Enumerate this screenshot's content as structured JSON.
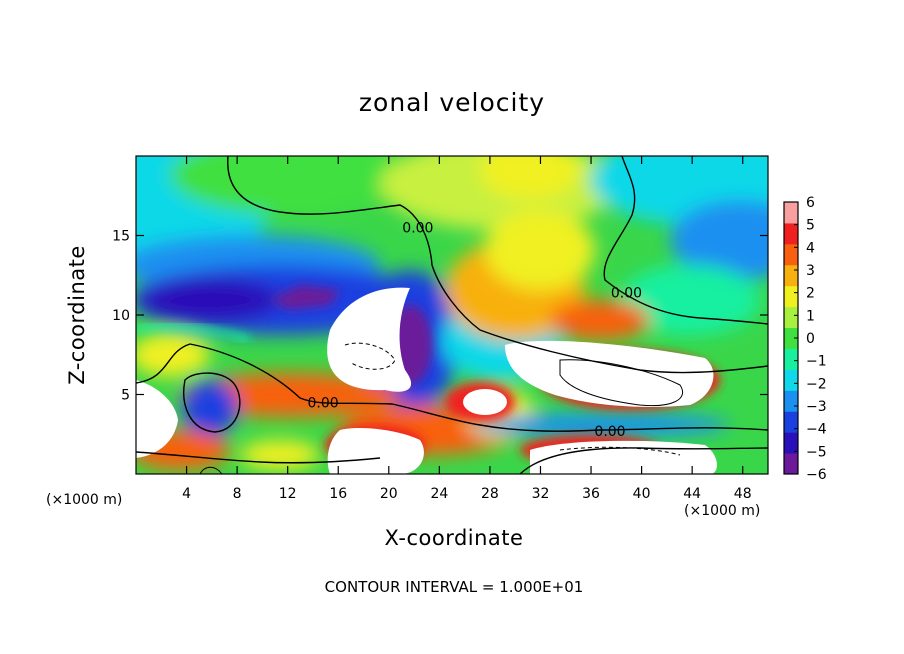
{
  "chart_data": {
    "type": "heatmap",
    "title": "zonal velocity",
    "xlabel": "X-coordinate",
    "ylabel": "Z-coordinate",
    "x_unit_label": "(×1000 m)",
    "x_ticks": [
      4,
      8,
      12,
      16,
      20,
      24,
      28,
      32,
      36,
      40,
      44,
      48
    ],
    "y_ticks": [
      5,
      10,
      15
    ],
    "xlim": [
      0,
      50
    ],
    "ylim": [
      0,
      20
    ],
    "colorbar": {
      "levels": [
        -6,
        -5,
        -4,
        -3,
        -2,
        -1,
        0,
        1,
        2,
        3,
        4,
        5,
        6
      ],
      "colors": [
        "#6a1a9a",
        "#2a10b8",
        "#1a40e0",
        "#1a90f0",
        "#10d8e8",
        "#18f0a0",
        "#40e040",
        "#a8f040",
        "#f0f020",
        "#f8b010",
        "#f86010",
        "#f02020",
        "#f8a0a0"
      ],
      "above_max_color": "#ffffff"
    },
    "contour_labels": [
      {
        "text": "0.00",
        "x": 14.8,
        "z": 4.5
      },
      {
        "text": "0.00",
        "x": 37.5,
        "z": 2.7
      },
      {
        "text": "0.00",
        "x": 22.3,
        "z": 15.5
      },
      {
        "text": "0.00",
        "x": 38.8,
        "z": 11.4
      }
    ],
    "contour_interval_text": "CONTOUR INTERVAL = 1.000E+01"
  }
}
